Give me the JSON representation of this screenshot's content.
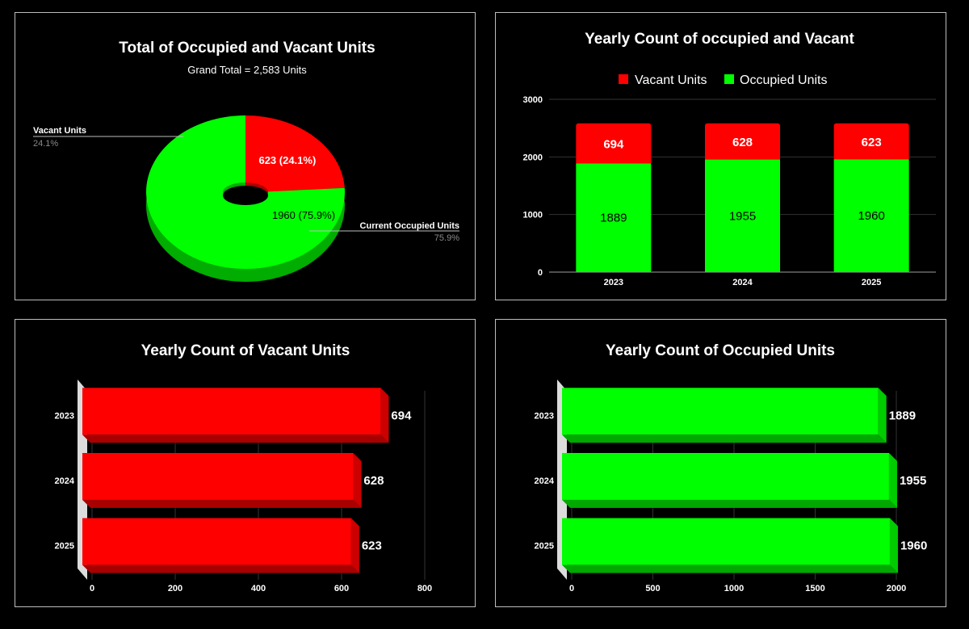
{
  "colors": {
    "vacant": "#ff0000",
    "occupied": "#00ff00",
    "background": "#000000",
    "border": "#bdbdbd"
  },
  "chart_data": [
    {
      "type": "pie",
      "title": "Total of Occupied and Vacant Units",
      "subtitle": "Grand Total = 2,583 Units",
      "slices": [
        {
          "label": "Vacant Units",
          "value": 623,
          "percent": "24.1%",
          "data_label": "623 (24.1%)",
          "color": "#ff0000"
        },
        {
          "label": "Current Occupied Units",
          "value": 1960,
          "percent": "75.9%",
          "data_label": "1960 (75.9%)",
          "color": "#00ff00"
        }
      ]
    },
    {
      "type": "bar",
      "stacked": true,
      "title": "Yearly Count of occupied and Vacant",
      "legend": [
        "Vacant Units",
        "Occupied Units"
      ],
      "legend_position": "top",
      "categories": [
        "2023",
        "2024",
        "2025"
      ],
      "series": [
        {
          "name": "Occupied Units",
          "values": [
            1889,
            1955,
            1960
          ],
          "labels": [
            "1889",
            "1955",
            "1960"
          ],
          "color": "#00ff00"
        },
        {
          "name": "Vacant Units",
          "values": [
            694,
            628,
            623
          ],
          "labels": [
            "694",
            "628",
            "623"
          ],
          "color": "#ff0000"
        }
      ],
      "yticks": [
        "0",
        "1000",
        "2000",
        "3000"
      ],
      "ylim": [
        0,
        3000
      ],
      "grid": true
    },
    {
      "type": "bar",
      "orientation": "horizontal",
      "title": "Yearly Count of Vacant Units",
      "categories": [
        "2023",
        "2024",
        "2025"
      ],
      "values": [
        694,
        628,
        623
      ],
      "labels": [
        "694",
        "628",
        "623"
      ],
      "xticks": [
        "0",
        "200",
        "400",
        "600",
        "800"
      ],
      "xlim": [
        0,
        800
      ],
      "color": "#ff0000"
    },
    {
      "type": "bar",
      "orientation": "horizontal",
      "title": "Yearly Count of Occupied Units",
      "categories": [
        "2023",
        "2024",
        "2025"
      ],
      "values": [
        1889,
        1955,
        1960
      ],
      "labels": [
        "1889",
        "1955",
        "1960"
      ],
      "xticks": [
        "0",
        "500",
        "1000",
        "1500",
        "2000"
      ],
      "xlim": [
        0,
        2000
      ],
      "color": "#00ff00"
    }
  ]
}
